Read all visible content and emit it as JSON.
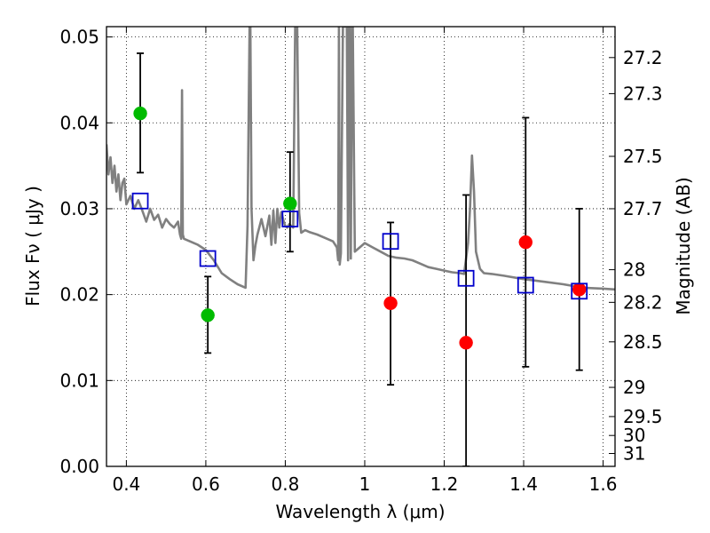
{
  "chart_data": {
    "type": "scatter",
    "xlabel": "Wavelength  λ (μm)",
    "ylabel": "Flux  Fν  ( μJy )",
    "y2label": "Magnitude (AB)",
    "xlim": [
      0.35,
      1.63
    ],
    "ylim": [
      0.0,
      0.0512
    ],
    "grid": true,
    "x_ticks": [
      {
        "v": 0.4,
        "t": "0.4"
      },
      {
        "v": 0.6,
        "t": "0.6"
      },
      {
        "v": 0.8,
        "t": "0.8"
      },
      {
        "v": 1.0,
        "t": "1"
      },
      {
        "v": 1.2,
        "t": "1.2"
      },
      {
        "v": 1.4,
        "t": "1.4"
      },
      {
        "v": 1.6,
        "t": "1.6"
      }
    ],
    "y_ticks": [
      {
        "v": 0.0,
        "t": "0.00"
      },
      {
        "v": 0.01,
        "t": "0.01"
      },
      {
        "v": 0.02,
        "t": "0.02"
      },
      {
        "v": 0.03,
        "t": "0.03"
      },
      {
        "v": 0.04,
        "t": "0.04"
      },
      {
        "v": 0.05,
        "t": "0.05"
      }
    ],
    "mag_ticks": [
      {
        "flux": 0.0476,
        "t": "27.2"
      },
      {
        "flux": 0.0434,
        "t": "27.3"
      },
      {
        "flux": 0.0361,
        "t": "27.5"
      },
      {
        "flux": 0.03,
        "t": "27.7"
      },
      {
        "flux": 0.0229,
        "t": "28"
      },
      {
        "flux": 0.0191,
        "t": "28.2"
      },
      {
        "flux": 0.0145,
        "t": "28.5"
      },
      {
        "flux": 0.0092,
        "t": "29"
      },
      {
        "flux": 0.0058,
        "t": "29.5"
      },
      {
        "flux": 0.0036,
        "t": "30"
      },
      {
        "flux": 0.0015,
        "t": "31"
      }
    ],
    "series": [
      {
        "kind": "detection",
        "color": "#00bb00",
        "x": [
          0.435,
          0.605,
          0.812
        ],
        "y": [
          0.0411,
          0.0176,
          0.0306
        ],
        "yerr_low": [
          0.0342,
          0.0132,
          0.025
        ],
        "yerr_high": [
          0.0481,
          0.0221,
          0.0366
        ]
      },
      {
        "kind": "low-snr",
        "color": "#ff0000",
        "x": [
          1.065,
          1.255,
          1.405,
          1.54
        ],
        "y": [
          0.019,
          0.0144,
          0.0261,
          0.0206
        ],
        "yerr_low": [
          0.0095,
          0.0,
          0.0116,
          0.0112
        ],
        "yerr_high": [
          0.0284,
          0.0316,
          0.0406,
          0.03
        ]
      },
      {
        "kind": "model-photometry",
        "color": "#0000cc",
        "marker": "open-square",
        "x": [
          0.435,
          0.605,
          0.812,
          1.065,
          1.255,
          1.405,
          1.54
        ],
        "y": [
          0.0309,
          0.0242,
          0.0288,
          0.0262,
          0.0219,
          0.0211,
          0.0204
        ]
      }
    ],
    "model_spectrum": {
      "color": "#808080",
      "x": [
        0.35,
        0.355,
        0.36,
        0.365,
        0.37,
        0.375,
        0.38,
        0.385,
        0.39,
        0.395,
        0.4,
        0.41,
        0.42,
        0.43,
        0.44,
        0.45,
        0.46,
        0.47,
        0.48,
        0.49,
        0.5,
        0.51,
        0.52,
        0.53,
        0.535,
        0.538,
        0.54,
        0.542,
        0.545,
        0.56,
        0.58,
        0.6,
        0.62,
        0.64,
        0.66,
        0.68,
        0.7,
        0.705,
        0.71,
        0.712,
        0.715,
        0.72,
        0.725,
        0.73,
        0.74,
        0.75,
        0.76,
        0.765,
        0.77,
        0.775,
        0.78,
        0.785,
        0.79,
        0.795,
        0.8,
        0.805,
        0.81,
        0.82,
        0.825,
        0.83,
        0.835,
        0.84,
        0.85,
        0.86,
        0.88,
        0.9,
        0.92,
        0.93,
        0.933,
        0.935,
        0.937,
        0.94,
        0.945,
        0.95,
        0.955,
        0.958,
        0.96,
        0.962,
        0.965,
        0.968,
        0.97,
        0.975,
        0.98,
        0.99,
        1.0,
        1.02,
        1.04,
        1.06,
        1.08,
        1.1,
        1.12,
        1.14,
        1.16,
        1.18,
        1.2,
        1.22,
        1.24,
        1.25,
        1.26,
        1.265,
        1.27,
        1.275,
        1.28,
        1.29,
        1.3,
        1.32,
        1.35,
        1.4,
        1.45,
        1.5,
        1.55,
        1.6,
        1.63
      ],
      "y": [
        0.0375,
        0.034,
        0.036,
        0.033,
        0.035,
        0.032,
        0.034,
        0.031,
        0.033,
        0.0335,
        0.0305,
        0.0315,
        0.03,
        0.031,
        0.0298,
        0.0285,
        0.03,
        0.0287,
        0.0293,
        0.0278,
        0.0288,
        0.0282,
        0.0278,
        0.0285,
        0.027,
        0.0265,
        0.0438,
        0.027,
        0.0265,
        0.0262,
        0.0258,
        0.0252,
        0.024,
        0.0225,
        0.0218,
        0.0212,
        0.0208,
        0.028,
        0.0512,
        0.0512,
        0.03,
        0.024,
        0.0258,
        0.027,
        0.0288,
        0.0268,
        0.0292,
        0.0258,
        0.0298,
        0.026,
        0.03,
        0.0278,
        0.0296,
        0.0287,
        0.028,
        0.0278,
        0.0282,
        0.0278,
        0.0512,
        0.0512,
        0.0295,
        0.0272,
        0.0275,
        0.0273,
        0.027,
        0.0266,
        0.0262,
        0.0255,
        0.024,
        0.0512,
        0.0235,
        0.0248,
        0.0512,
        0.0512,
        0.0512,
        0.024,
        0.0512,
        0.0512,
        0.0242,
        0.0512,
        0.0512,
        0.025,
        0.0252,
        0.0256,
        0.026,
        0.0255,
        0.025,
        0.0245,
        0.0243,
        0.0242,
        0.024,
        0.0236,
        0.0232,
        0.023,
        0.0228,
        0.0226,
        0.0225,
        0.0224,
        0.026,
        0.03,
        0.0362,
        0.032,
        0.025,
        0.023,
        0.0225,
        0.0224,
        0.0222,
        0.0218,
        0.0215,
        0.0212,
        0.0208,
        0.0207,
        0.0206
      ]
    }
  }
}
